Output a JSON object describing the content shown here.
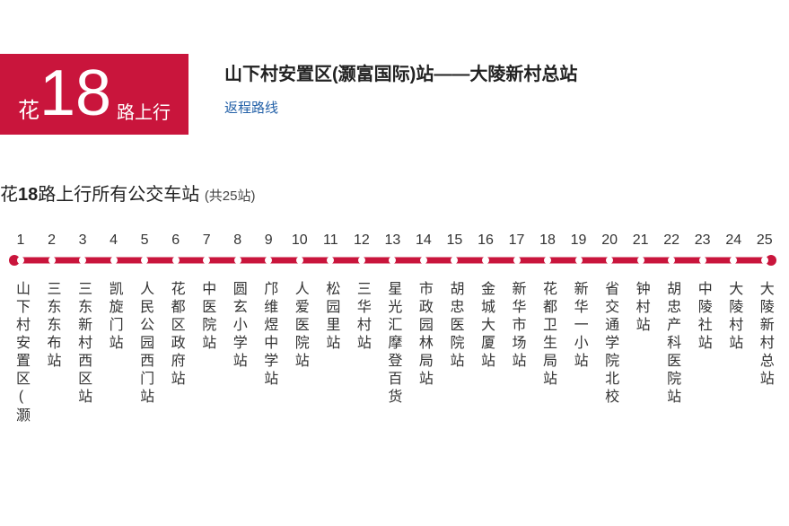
{
  "badge": {
    "prefix": "花",
    "number": "18",
    "suffix": "路上行"
  },
  "route_title": "山下村安置区(灏富国际)站——大陵新村总站",
  "return_link": "返程路线",
  "section": {
    "prefix": "花",
    "bold": "18",
    "mid": "路上行所有公交车站",
    "count": "(共25站)"
  },
  "line_color": "#c9153c",
  "stops": [
    {
      "n": "1",
      "name": "山下村安置区(灏"
    },
    {
      "n": "2",
      "name": "三东东布站"
    },
    {
      "n": "3",
      "name": "三东新村西区站"
    },
    {
      "n": "4",
      "name": "凯旋门站"
    },
    {
      "n": "5",
      "name": "人民公园西门站"
    },
    {
      "n": "6",
      "name": "花都区政府站"
    },
    {
      "n": "7",
      "name": "中医院站"
    },
    {
      "n": "8",
      "name": "圆玄小学站"
    },
    {
      "n": "9",
      "name": "邝维煜中学站"
    },
    {
      "n": "10",
      "name": "人爱医院站"
    },
    {
      "n": "11",
      "name": "松园里站"
    },
    {
      "n": "12",
      "name": "三华村站"
    },
    {
      "n": "13",
      "name": "星光汇摩登百货"
    },
    {
      "n": "14",
      "name": "市政园林局站"
    },
    {
      "n": "15",
      "name": "胡忠医院站"
    },
    {
      "n": "16",
      "name": "金城大厦站"
    },
    {
      "n": "17",
      "name": "新华市场站"
    },
    {
      "n": "18",
      "name": "花都卫生局站"
    },
    {
      "n": "19",
      "name": "新华一小站"
    },
    {
      "n": "20",
      "name": "省交通学院北校"
    },
    {
      "n": "21",
      "name": "钟村站"
    },
    {
      "n": "22",
      "name": "胡忠产科医院站"
    },
    {
      "n": "23",
      "name": "中陵社站"
    },
    {
      "n": "24",
      "name": "大陵村站"
    },
    {
      "n": "25",
      "name": "大陵新村总站"
    }
  ]
}
